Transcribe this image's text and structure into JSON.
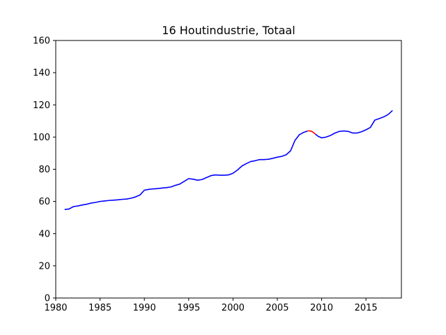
{
  "chart_data": {
    "type": "line",
    "title": "16 Houtindustrie, Totaal",
    "xlabel": "",
    "ylabel": "",
    "xlim": [
      1980,
      2019
    ],
    "ylim": [
      0,
      160
    ],
    "x_ticks": [
      1980,
      1985,
      1990,
      1995,
      2000,
      2005,
      2010,
      2015
    ],
    "y_ticks": [
      0,
      20,
      40,
      60,
      80,
      100,
      120,
      140,
      160
    ],
    "grid": false,
    "legend": "none",
    "series": [
      {
        "color": "#0000ff",
        "points": [
          [
            1981.0,
            55.0
          ],
          [
            1981.5,
            55.3
          ],
          [
            1982.0,
            56.8
          ],
          [
            1982.5,
            57.2
          ],
          [
            1983.0,
            57.8
          ],
          [
            1983.5,
            58.3
          ],
          [
            1984.0,
            59.0
          ],
          [
            1984.5,
            59.4
          ],
          [
            1985.0,
            60.0
          ],
          [
            1985.5,
            60.3
          ],
          [
            1986.0,
            60.6
          ],
          [
            1986.5,
            60.8
          ],
          [
            1987.0,
            61.0
          ],
          [
            1987.5,
            61.3
          ],
          [
            1988.0,
            61.5
          ],
          [
            1988.5,
            62.0
          ],
          [
            1989.0,
            62.8
          ],
          [
            1989.5,
            64.0
          ],
          [
            1990.0,
            67.0
          ],
          [
            1990.5,
            67.5
          ],
          [
            1991.0,
            67.8
          ],
          [
            1991.5,
            68.0
          ],
          [
            1992.0,
            68.3
          ],
          [
            1992.5,
            68.6
          ],
          [
            1993.0,
            69.0
          ],
          [
            1993.5,
            70.0
          ],
          [
            1994.0,
            70.8
          ],
          [
            1994.5,
            72.5
          ],
          [
            1995.0,
            74.2
          ],
          [
            1995.5,
            73.8
          ],
          [
            1996.0,
            73.2
          ],
          [
            1996.5,
            73.6
          ],
          [
            1997.0,
            74.8
          ],
          [
            1997.5,
            76.0
          ],
          [
            1998.0,
            76.5
          ],
          [
            1998.5,
            76.3
          ],
          [
            1999.0,
            76.3
          ],
          [
            1999.5,
            76.5
          ],
          [
            2000.0,
            77.5
          ],
          [
            2000.5,
            79.5
          ],
          [
            2001.0,
            82.0
          ],
          [
            2001.5,
            83.5
          ],
          [
            2002.0,
            84.8
          ],
          [
            2002.5,
            85.3
          ],
          [
            2003.0,
            86.0
          ],
          [
            2003.5,
            86.0
          ],
          [
            2004.0,
            86.2
          ],
          [
            2004.5,
            86.8
          ],
          [
            2005.0,
            87.5
          ],
          [
            2005.5,
            88.0
          ],
          [
            2006.0,
            89.0
          ],
          [
            2006.5,
            91.5
          ],
          [
            2007.0,
            98.0
          ],
          [
            2007.5,
            101.5
          ],
          [
            2008.0,
            103.0
          ],
          [
            2008.2,
            103.3
          ],
          [
            2008.4,
            103.8
          ]
        ]
      },
      {
        "color": "#ff0000",
        "points": [
          [
            2008.4,
            103.8
          ],
          [
            2008.6,
            103.9
          ],
          [
            2008.9,
            103.5
          ],
          [
            2009.1,
            102.7
          ],
          [
            2009.3,
            101.8
          ]
        ]
      },
      {
        "color": "#0000ff",
        "points": [
          [
            2009.3,
            101.8
          ],
          [
            2009.6,
            100.5
          ],
          [
            2010.0,
            99.5
          ],
          [
            2010.5,
            100.0
          ],
          [
            2011.0,
            101.0
          ],
          [
            2011.5,
            102.5
          ],
          [
            2012.0,
            103.5
          ],
          [
            2012.5,
            103.8
          ],
          [
            2013.0,
            103.5
          ],
          [
            2013.5,
            102.5
          ],
          [
            2014.0,
            102.5
          ],
          [
            2014.5,
            103.3
          ],
          [
            2015.0,
            104.5
          ],
          [
            2015.5,
            106.0
          ],
          [
            2016.0,
            110.5
          ],
          [
            2016.5,
            111.5
          ],
          [
            2017.0,
            112.5
          ],
          [
            2017.5,
            114.0
          ],
          [
            2018.0,
            116.5
          ]
        ]
      }
    ]
  }
}
